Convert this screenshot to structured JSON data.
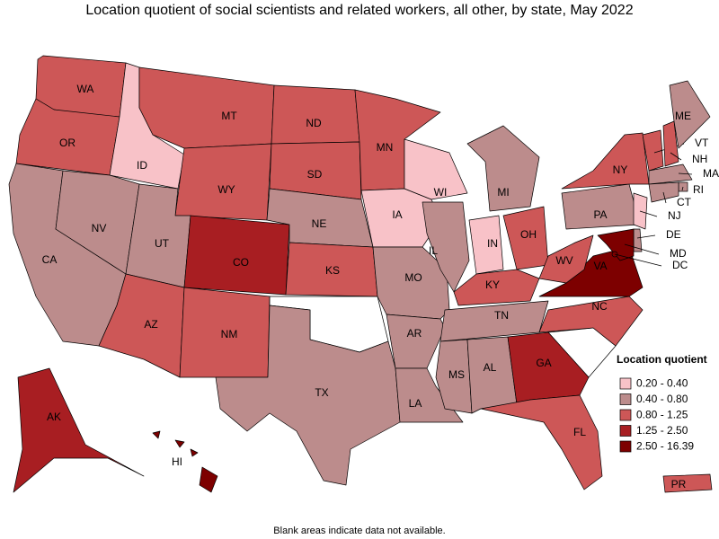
{
  "title": "Location quotient of social scientists and related workers, all other, by state, May 2022",
  "footnote": "Blank areas indicate data not available.",
  "legend": {
    "title": "Location quotient",
    "items": [
      {
        "label": "0.20 - 0.40",
        "color": "#f8c2c8"
      },
      {
        "label": "0.40 - 0.80",
        "color": "#bc8c8c"
      },
      {
        "label": "0.80 - 1.25",
        "color": "#cd5757"
      },
      {
        "label": "1.25 - 2.50",
        "color": "#a81e22"
      },
      {
        "label": "2.50 - 16.39",
        "color": "#7d0000"
      }
    ]
  },
  "states": [
    {
      "abbr": "WA",
      "color": "#cd5757"
    },
    {
      "abbr": "OR",
      "color": "#cd5757"
    },
    {
      "abbr": "CA",
      "color": "#bc8c8c"
    },
    {
      "abbr": "ID",
      "color": "#f8c2c8"
    },
    {
      "abbr": "NV",
      "color": "#bc8c8c"
    },
    {
      "abbr": "MT",
      "color": "#cd5757"
    },
    {
      "abbr": "WY",
      "color": "#cd5757"
    },
    {
      "abbr": "UT",
      "color": "#bc8c8c"
    },
    {
      "abbr": "AZ",
      "color": "#cd5757"
    },
    {
      "abbr": "CO",
      "color": "#a81e22"
    },
    {
      "abbr": "NM",
      "color": "#cd5757"
    },
    {
      "abbr": "ND",
      "color": "#cd5757"
    },
    {
      "abbr": "SD",
      "color": "#cd5757"
    },
    {
      "abbr": "NE",
      "color": "#bc8c8c"
    },
    {
      "abbr": "KS",
      "color": "#cd5757"
    },
    {
      "abbr": "TX",
      "color": "#bc8c8c"
    },
    {
      "abbr": "MN",
      "color": "#cd5757"
    },
    {
      "abbr": "IA",
      "color": "#f8c2c8"
    },
    {
      "abbr": "MO",
      "color": "#bc8c8c"
    },
    {
      "abbr": "AR",
      "color": "#bc8c8c"
    },
    {
      "abbr": "LA",
      "color": "#bc8c8c"
    },
    {
      "abbr": "WI",
      "color": "#f8c2c8"
    },
    {
      "abbr": "IL",
      "color": "#bc8c8c"
    },
    {
      "abbr": "IN",
      "color": "#f8c2c8"
    },
    {
      "abbr": "MI",
      "color": "#bc8c8c"
    },
    {
      "abbr": "OH",
      "color": "#cd5757"
    },
    {
      "abbr": "KY",
      "color": "#cd5757"
    },
    {
      "abbr": "TN",
      "color": "#bc8c8c"
    },
    {
      "abbr": "MS",
      "color": "#bc8c8c"
    },
    {
      "abbr": "AL",
      "color": "#bc8c8c"
    },
    {
      "abbr": "GA",
      "color": "#a81e22"
    },
    {
      "abbr": "FL",
      "color": "#cd5757"
    },
    {
      "abbr": "NC",
      "color": "#cd5757"
    },
    {
      "abbr": "VA",
      "color": "#7d0000"
    },
    {
      "abbr": "WV",
      "color": "#cd5757"
    },
    {
      "abbr": "PA",
      "color": "#bc8c8c"
    },
    {
      "abbr": "NY",
      "color": "#cd5757"
    },
    {
      "abbr": "VT",
      "color": "#cd5757"
    },
    {
      "abbr": "NH",
      "color": "#cd5757"
    },
    {
      "abbr": "ME",
      "color": "#bc8c8c"
    },
    {
      "abbr": "MA",
      "color": "#bc8c8c"
    },
    {
      "abbr": "RI",
      "color": "#bc8c8c"
    },
    {
      "abbr": "CT",
      "color": "#bc8c8c"
    },
    {
      "abbr": "NJ",
      "color": "#f8c2c8"
    },
    {
      "abbr": "DE",
      "color": "#bc8c8c"
    },
    {
      "abbr": "MD",
      "color": "#7d0000"
    },
    {
      "abbr": "DC",
      "color": "#7d0000"
    },
    {
      "abbr": "AK",
      "color": "#a81e22"
    },
    {
      "abbr": "HI",
      "color": "#7d0000"
    },
    {
      "abbr": "PR",
      "color": "#cd5757"
    }
  ]
}
